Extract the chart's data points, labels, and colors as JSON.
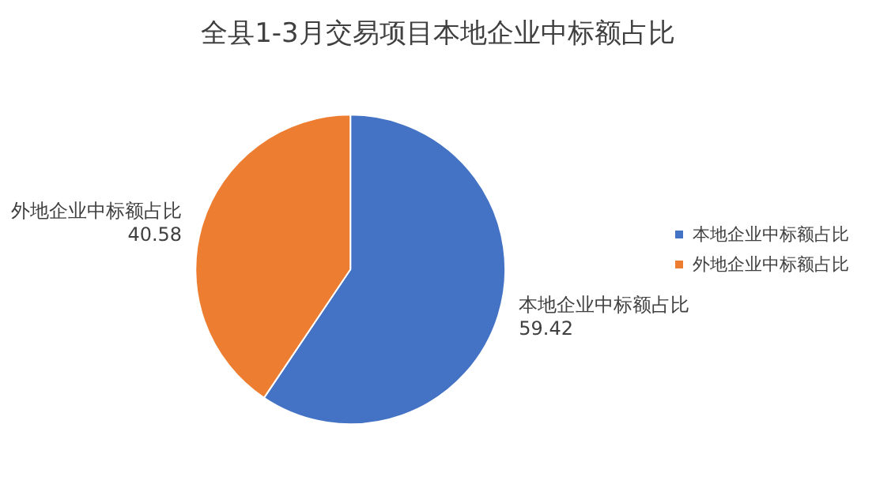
{
  "chart_data": {
    "type": "pie",
    "title": "全县1-3月交易项目本地企业中标额占比",
    "categories": [
      "本地企业中标额占比",
      "外地企业中标额占比"
    ],
    "values": [
      59.42,
      40.58
    ],
    "colors": [
      "#4472c4",
      "#ed7d31"
    ],
    "data_labels": true,
    "legend": "right"
  }
}
